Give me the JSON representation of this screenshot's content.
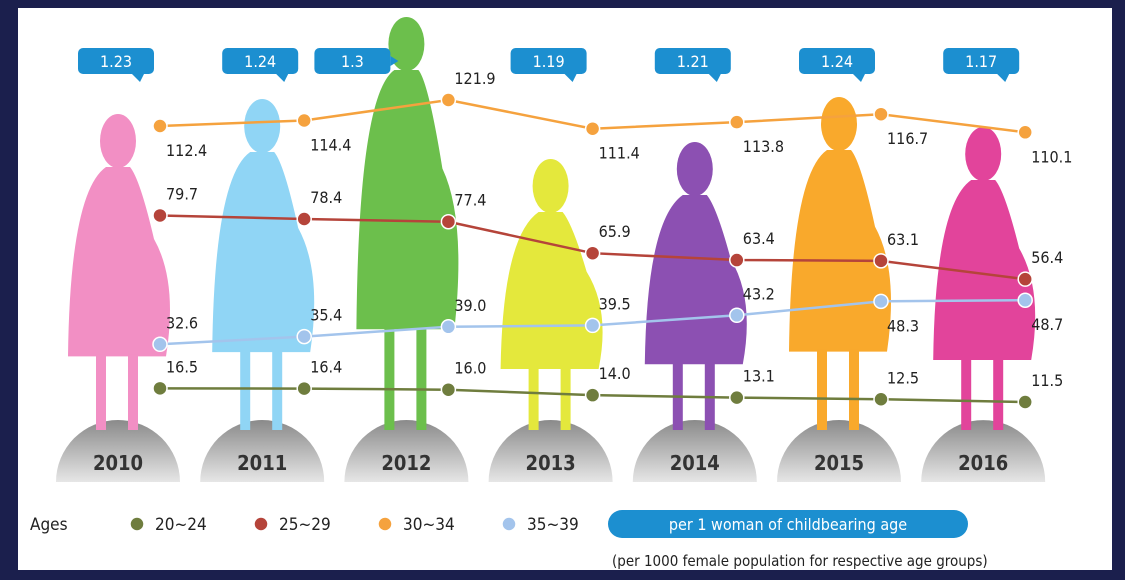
{
  "chart_data": {
    "type": "line",
    "categories": [
      "2010",
      "2011",
      "2012",
      "2013",
      "2014",
      "2015",
      "2016"
    ],
    "series": [
      {
        "name": "20~24",
        "color": "#6f7d3e",
        "values": [
          16.5,
          16.4,
          16.0,
          14.0,
          13.1,
          12.5,
          11.5
        ],
        "value_labels": [
          "16.5",
          "16.4",
          "16.0",
          "14.0",
          "13.1",
          "12.5",
          "11.5"
        ]
      },
      {
        "name": "25~29",
        "color": "#b5443a",
        "values": [
          79.7,
          78.4,
          77.4,
          65.9,
          63.4,
          63.1,
          56.4
        ],
        "value_labels": [
          "79.7",
          "78.4",
          "77.4",
          "65.9",
          "63.4",
          "63.1",
          "56.4"
        ]
      },
      {
        "name": "30~34",
        "color": "#f5a23e",
        "values": [
          112.4,
          114.4,
          121.9,
          111.4,
          113.8,
          116.7,
          110.1
        ],
        "value_labels": [
          "112.4",
          "114.4",
          "121.9",
          "111.4",
          "113.8",
          "116.7",
          "110.1"
        ]
      },
      {
        "name": "35~39",
        "color": "#a3c4ec",
        "values": [
          32.6,
          35.4,
          39.0,
          39.5,
          43.2,
          48.3,
          48.7
        ],
        "value_labels": [
          "32.6",
          "35.4",
          "39.0",
          "39.5",
          "43.2",
          "48.3",
          "48.7"
        ]
      }
    ],
    "legend_title": "Ages",
    "total_fertility": {
      "label": "per 1 woman of childbearing age",
      "color": "#1c8fd0",
      "values": [
        1.23,
        1.24,
        1.3,
        1.19,
        1.21,
        1.24,
        1.17
      ]
    },
    "note": "(per 1000 female population for respective age groups)"
  }
}
